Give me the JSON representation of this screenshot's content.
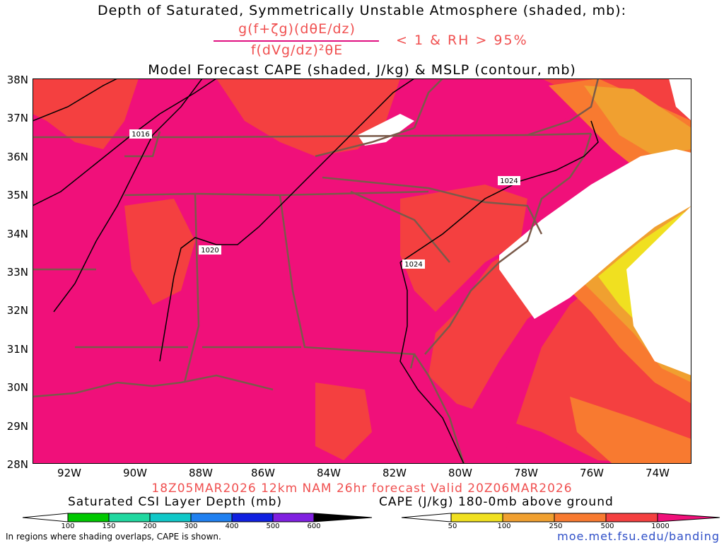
{
  "header": {
    "title_line1": "Depth of Saturated, Symmetrically Unstable Atmosphere (shaded, mb):",
    "formula_numerator": "g(f+ζg)(dθE/dz)",
    "formula_denominator": "f(dVg/dz)²θE",
    "formula_condition": "< 1 & RH > 95%",
    "title_line3": "Model Forecast CAPE (shaded, J/kg) & MSLP (contour, mb)"
  },
  "map": {
    "lat_labels": [
      "38N",
      "37N",
      "36N",
      "35N",
      "34N",
      "33N",
      "32N",
      "31N",
      "30N",
      "29N",
      "28N"
    ],
    "lon_labels": [
      "92W",
      "90W",
      "88W",
      "86W",
      "84W",
      "82W",
      "80W",
      "78W",
      "76W",
      "74W"
    ],
    "contour_labels": [
      "1016",
      "1020",
      "1024",
      "1024"
    ],
    "colors": {
      "cape_1000": "#f0107a",
      "cape_500": "#f44040",
      "cape_250": "#f87a30",
      "cape_100": "#f0a030",
      "cape_50": "#f0e020",
      "borders": "#7a5a4a",
      "isobar": "#000000"
    }
  },
  "footer": {
    "forecast_text": "18Z05MAR2026 12km NAM 26hr forecast Valid 20Z06MAR2026",
    "csi_label": "Saturated CSI Layer Depth (mb)",
    "cape_label": "CAPE (J/kg) 180-0mb above ground",
    "csi_ticks": [
      "100",
      "150",
      "200",
      "300",
      "400",
      "500",
      "600"
    ],
    "cape_ticks": [
      "50",
      "100",
      "250",
      "500",
      "1000"
    ],
    "note": "In regions where shading overlaps, CAPE is shown.",
    "credit": "moe.met.fsu.edu/banding",
    "csi_colors": [
      "#00c800",
      "#20d8a0",
      "#10c8c8",
      "#2080f0",
      "#1020e0",
      "#8020e0",
      "#000000"
    ],
    "cape_colors": [
      "#f0e020",
      "#f0a030",
      "#f87a30",
      "#f44040",
      "#f0107a"
    ]
  }
}
